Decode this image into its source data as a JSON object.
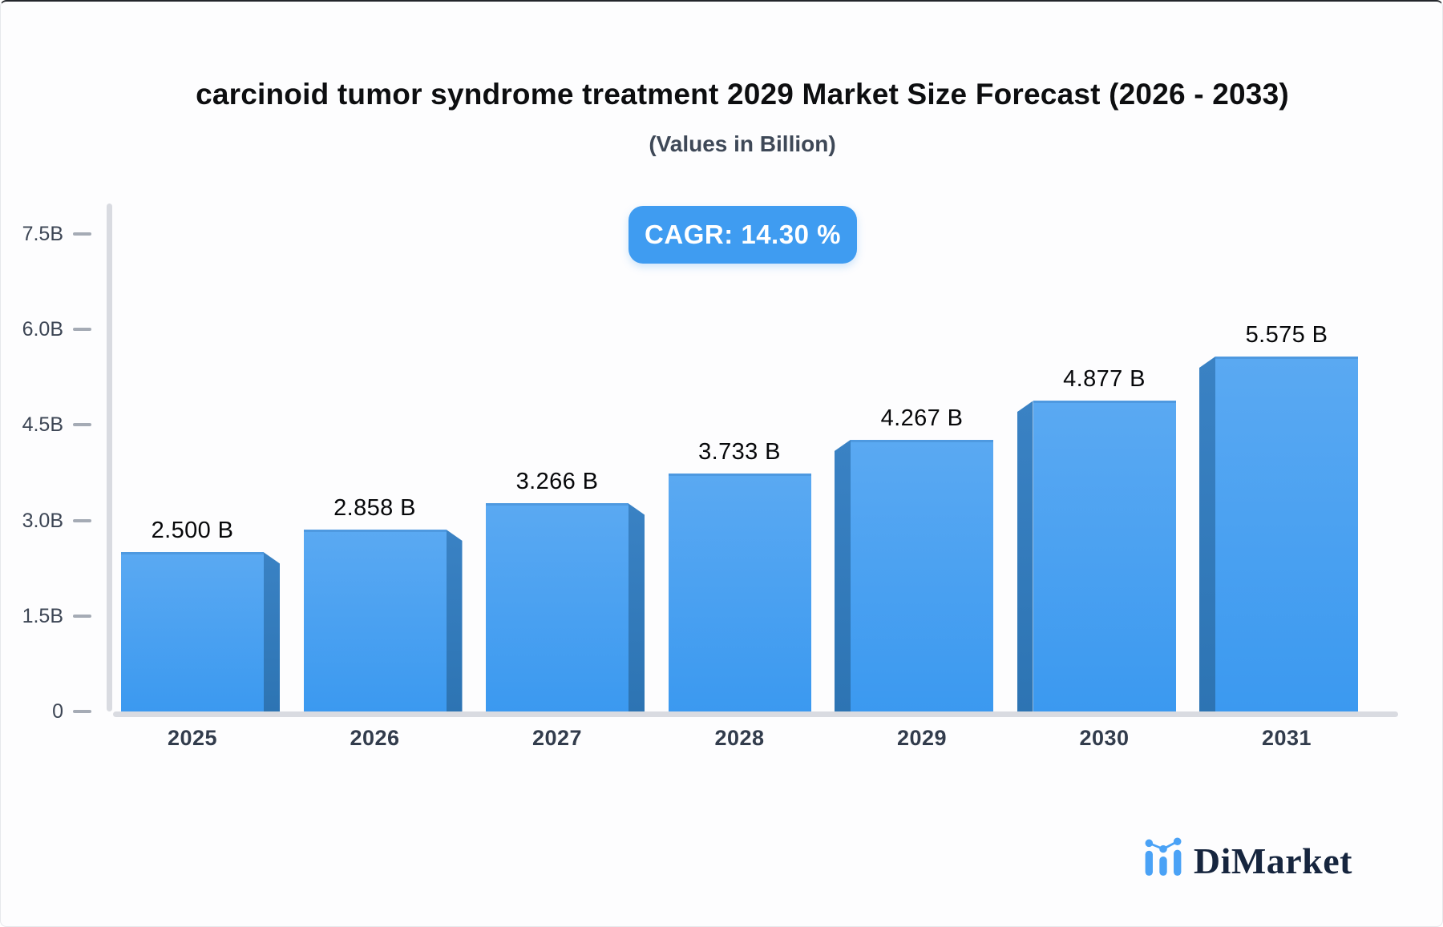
{
  "title": "carcinoid tumor syndrome treatment 2029 Market Size Forecast (2026 - 2033)",
  "subtitle": "(Values in Billion)",
  "badge": {
    "label": "CAGR: 14.30 %"
  },
  "brand": {
    "name": "DiMarket"
  },
  "colors": {
    "bar_top": "#5aa9f2",
    "bar_bottom": "#3b99f0",
    "bar_top_edge": "#4e99e0",
    "bar_side_top": "#3a82c4",
    "bar_side_bottom": "#2d74b3",
    "badge_bg": "#3f9cf1",
    "axis_gray": "#d9dbe1",
    "tick_dash": "#a5abb5",
    "tick_text": "#3d4655",
    "value_text": "#07080a",
    "brand_navy": "#16253e",
    "brand_blue": "#4aa2f6"
  },
  "chart_data": {
    "type": "bar",
    "title": "carcinoid tumor syndrome treatment 2029 Market Size Forecast (2026 - 2033)",
    "subtitle": "(Values in Billion)",
    "cagr_annotation": "CAGR: 14.30 %",
    "categories": [
      "2025",
      "2026",
      "2027",
      "2028",
      "2029",
      "2030",
      "2031"
    ],
    "values": [
      2.5,
      2.858,
      3.266,
      3.733,
      4.267,
      4.877,
      5.575
    ],
    "bar_labels": [
      "2.500 B",
      "2.858 B",
      "3.266 B",
      "3.733 B",
      "4.267 B",
      "4.877 B",
      "5.575 B"
    ],
    "ylim": [
      0,
      7.5
    ],
    "yticks": [
      {
        "value": 0,
        "label": "0"
      },
      {
        "value": 1.5,
        "label": "1.5B"
      },
      {
        "value": 3,
        "label": "3.0B"
      },
      {
        "value": 4.5,
        "label": "4.5B"
      },
      {
        "value": 6,
        "label": "6.0B"
      },
      {
        "value": 7.5,
        "label": "7.5B"
      }
    ],
    "xlabel": "",
    "ylabel": "",
    "grid": false,
    "legend": false,
    "bar_style": "3d-extruded, gradient blue, side faces angled toward center"
  }
}
